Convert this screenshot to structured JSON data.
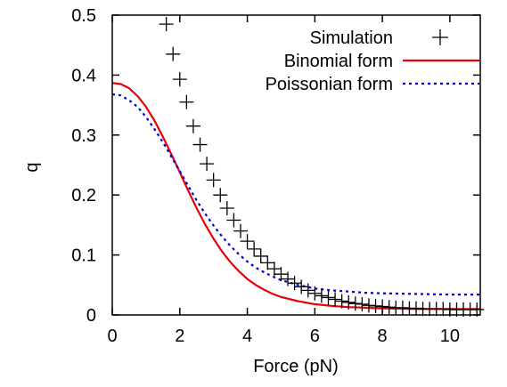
{
  "chart_data": {
    "type": "scatter",
    "xlabel": "Force (pN)",
    "ylabel": "q",
    "xlim": [
      0,
      10.9
    ],
    "ylim": [
      0,
      0.5
    ],
    "x_ticks": [
      0,
      2,
      4,
      6,
      8,
      10
    ],
    "x_tick_labels": [
      "0",
      "2",
      "4",
      "6",
      "8",
      "10"
    ],
    "y_ticks": [
      0,
      0.1,
      0.2,
      0.3,
      0.4,
      0.5
    ],
    "y_tick_labels": [
      "0",
      "0.1",
      "0.2",
      "0.3",
      "0.4",
      "0.5"
    ],
    "grid": false,
    "legend_position": "top-right",
    "series": [
      {
        "name": "Simulation",
        "style": "points",
        "marker": "plus",
        "color": "#000000",
        "x": [
          1.6,
          1.8,
          2.0,
          2.2,
          2.4,
          2.6,
          2.8,
          3.0,
          3.2,
          3.4,
          3.6,
          3.8,
          4.0,
          4.2,
          4.4,
          4.6,
          4.8,
          5.0,
          5.2,
          5.4,
          5.6,
          5.8,
          6.0,
          6.2,
          6.4,
          6.6,
          6.8,
          7.0,
          7.2,
          7.4,
          7.6,
          7.8,
          8.0,
          8.2,
          8.4,
          8.6,
          8.8,
          9.0,
          9.2,
          9.4,
          9.6,
          9.8,
          10.0,
          10.2,
          10.4,
          10.6,
          10.8
        ],
        "y": [
          0.485,
          0.435,
          0.393,
          0.355,
          0.315,
          0.284,
          0.252,
          0.225,
          0.2,
          0.178,
          0.158,
          0.14,
          0.123,
          0.11,
          0.098,
          0.087,
          0.077,
          0.068,
          0.06,
          0.053,
          0.047,
          0.041,
          0.036,
          0.032,
          0.029,
          0.026,
          0.023,
          0.021,
          0.019,
          0.018,
          0.016,
          0.015,
          0.014,
          0.013,
          0.012,
          0.012,
          0.011,
          0.011,
          0.01,
          0.01,
          0.01,
          0.01,
          0.009,
          0.009,
          0.009,
          0.009,
          0.009
        ]
      },
      {
        "name": "Binomial form",
        "style": "line",
        "dash": "solid",
        "color": "#e8000b",
        "x": [
          0,
          0.25,
          0.5,
          0.75,
          1.0,
          1.25,
          1.5,
          1.75,
          2.0,
          2.25,
          2.5,
          2.75,
          3.0,
          3.25,
          3.5,
          3.75,
          4.0,
          4.25,
          4.5,
          4.75,
          5.0,
          5.5,
          6.0,
          6.5,
          7.0,
          7.5,
          8.0,
          9.0,
          10.0,
          10.9
        ],
        "y": [
          0.387,
          0.385,
          0.378,
          0.365,
          0.347,
          0.324,
          0.297,
          0.268,
          0.238,
          0.207,
          0.178,
          0.151,
          0.127,
          0.106,
          0.088,
          0.073,
          0.06,
          0.05,
          0.042,
          0.035,
          0.03,
          0.023,
          0.018,
          0.015,
          0.013,
          0.012,
          0.011,
          0.01,
          0.01,
          0.01
        ]
      },
      {
        "name": "Poissonian form",
        "style": "line",
        "dash": "dotted",
        "color": "#0000d8",
        "x": [
          0,
          0.25,
          0.5,
          0.75,
          1.0,
          1.25,
          1.5,
          1.75,
          2.0,
          2.25,
          2.5,
          2.75,
          3.0,
          3.25,
          3.5,
          3.75,
          4.0,
          4.25,
          4.5,
          4.75,
          5.0,
          5.5,
          6.0,
          6.5,
          7.0,
          7.5,
          8.0,
          9.0,
          10.0,
          10.9
        ],
        "y": [
          0.368,
          0.366,
          0.358,
          0.347,
          0.33,
          0.31,
          0.288,
          0.264,
          0.24,
          0.215,
          0.191,
          0.169,
          0.149,
          0.131,
          0.115,
          0.101,
          0.089,
          0.079,
          0.071,
          0.064,
          0.058,
          0.05,
          0.044,
          0.041,
          0.039,
          0.037,
          0.036,
          0.035,
          0.034,
          0.034
        ]
      }
    ]
  }
}
